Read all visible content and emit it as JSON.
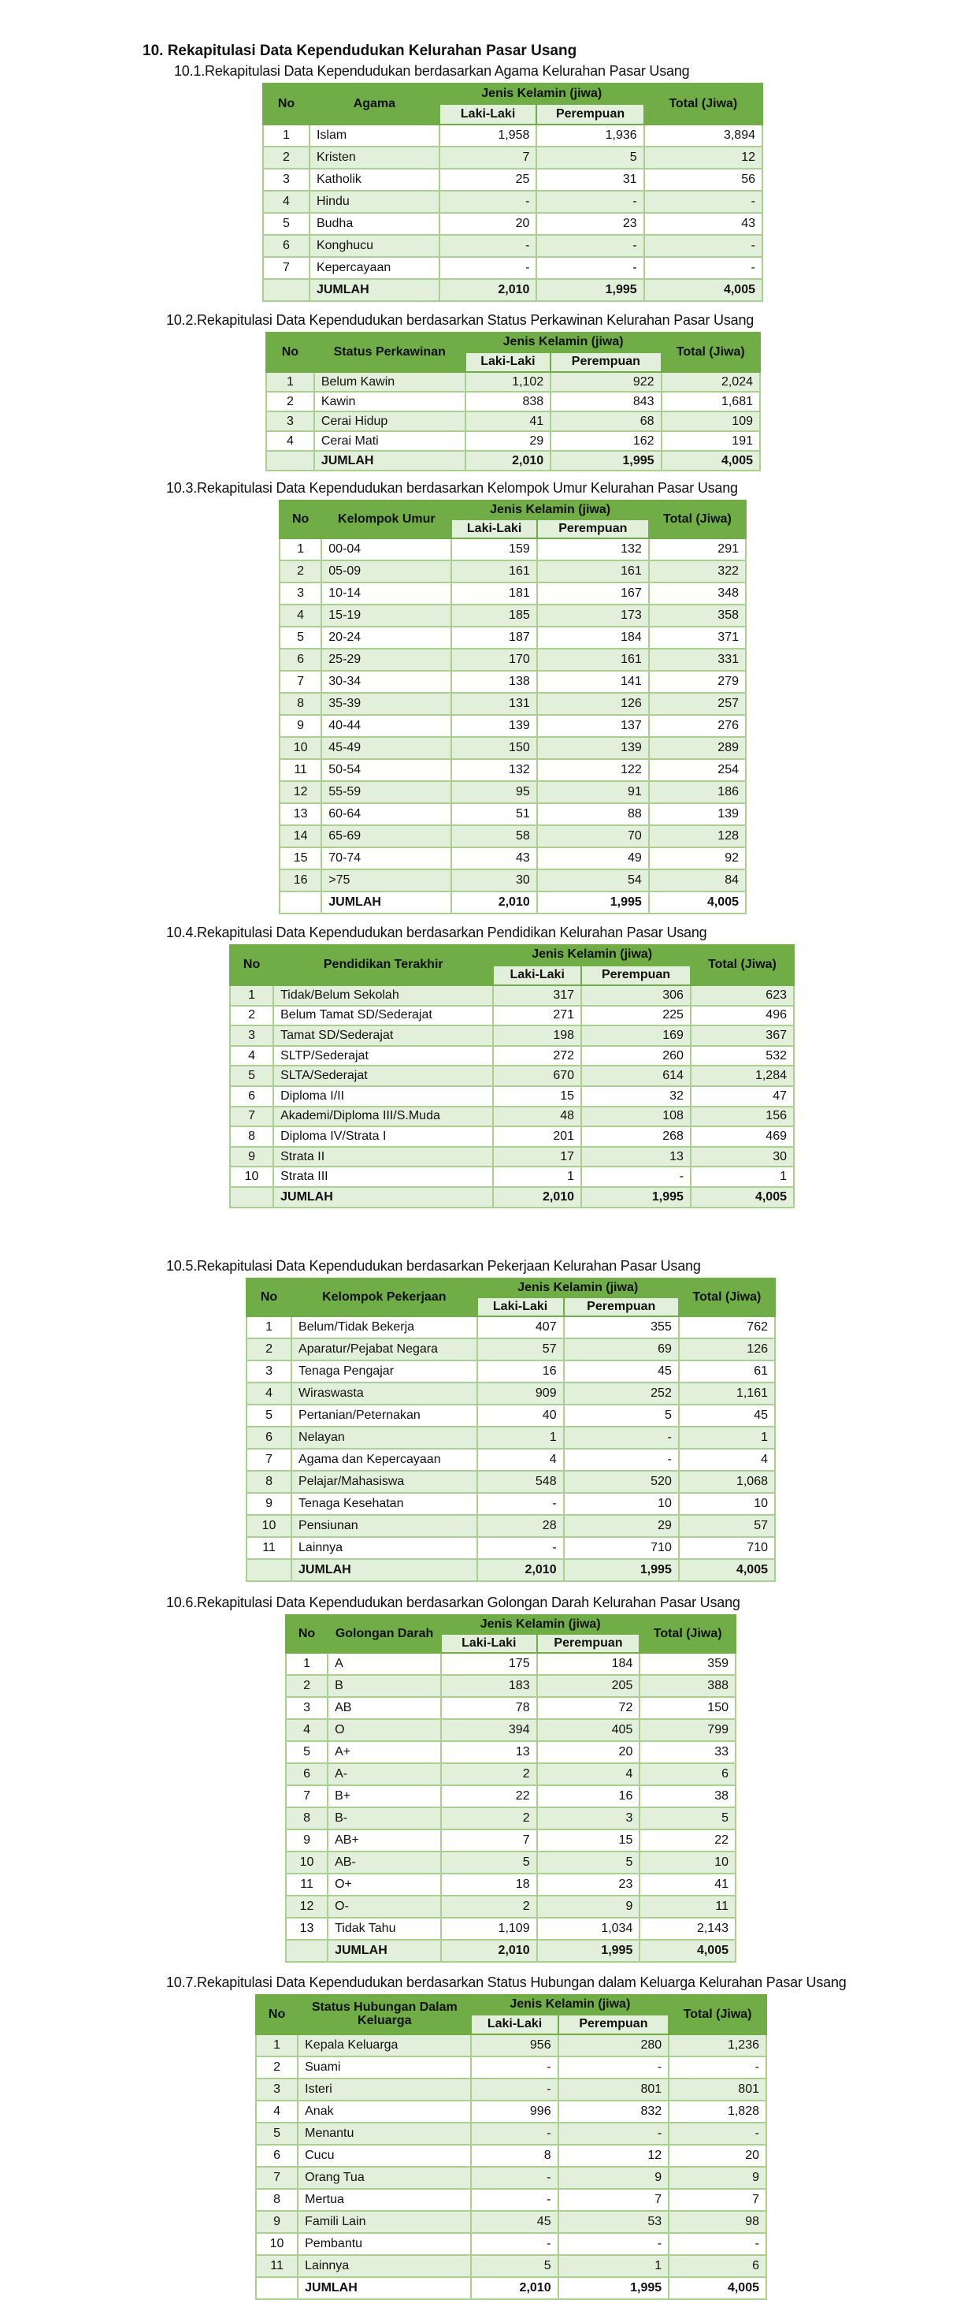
{
  "title": "10.  Rekapitulasi Data Kependudukan Kelurahan Pasar Usang",
  "header": {
    "no": "No",
    "gender_group": "Jenis Kelamin (jiwa)",
    "male": "Laki-Laki",
    "female": "Perempuan",
    "total": "Total (Jiwa)"
  },
  "colors": {
    "header_green": "#70ad47",
    "light_green": "#e2efda",
    "border_green": "#a9d08e"
  },
  "sections": [
    {
      "subtitle": "10.1.Rekapitulasi Data Kependudukan berdasarkan Agama Kelurahan Pasar Usang",
      "category_header": "Agama",
      "rows": [
        [
          "1",
          "Islam",
          "1,958",
          "1,936",
          "3,894"
        ],
        [
          "2",
          "Kristen",
          "7",
          "5",
          "12"
        ],
        [
          "3",
          "Katholik",
          "25",
          "31",
          "56"
        ],
        [
          "4",
          "Hindu",
          "-",
          "-",
          "-"
        ],
        [
          "5",
          "Budha",
          "20",
          "23",
          "43"
        ],
        [
          "6",
          "Konghucu",
          "-",
          "-",
          "-"
        ],
        [
          "7",
          "Kepercayaan",
          "-",
          "-",
          "-"
        ]
      ],
      "total": [
        "",
        "JUMLAH",
        "2,010",
        "1,995",
        "4,005"
      ]
    },
    {
      "subtitle": "10.2.Rekapitulasi Data Kependudukan berdasarkan Status Perkawinan Kelurahan Pasar Usang",
      "category_header": "Status Perkawinan",
      "rows": [
        [
          "1",
          "Belum Kawin",
          "1,102",
          "922",
          "2,024"
        ],
        [
          "2",
          "Kawin",
          "838",
          "843",
          "1,681"
        ],
        [
          "3",
          "Cerai Hidup",
          "41",
          "68",
          "109"
        ],
        [
          "4",
          "Cerai Mati",
          "29",
          "162",
          "191"
        ]
      ],
      "total": [
        "",
        "JUMLAH",
        "2,010",
        "1,995",
        "4,005"
      ]
    },
    {
      "subtitle": "10.3.Rekapitulasi Data Kependudukan berdasarkan Kelompok Umur Kelurahan Pasar Usang",
      "category_header": "Kelompok Umur",
      "rows": [
        [
          "1",
          "00-04",
          "159",
          "132",
          "291"
        ],
        [
          "2",
          "05-09",
          "161",
          "161",
          "322"
        ],
        [
          "3",
          "10-14",
          "181",
          "167",
          "348"
        ],
        [
          "4",
          "15-19",
          "185",
          "173",
          "358"
        ],
        [
          "5",
          "20-24",
          "187",
          "184",
          "371"
        ],
        [
          "6",
          "25-29",
          "170",
          "161",
          "331"
        ],
        [
          "7",
          "30-34",
          "138",
          "141",
          "279"
        ],
        [
          "8",
          "35-39",
          "131",
          "126",
          "257"
        ],
        [
          "9",
          "40-44",
          "139",
          "137",
          "276"
        ],
        [
          "10",
          "45-49",
          "150",
          "139",
          "289"
        ],
        [
          "11",
          "50-54",
          "132",
          "122",
          "254"
        ],
        [
          "12",
          "55-59",
          "95",
          "91",
          "186"
        ],
        [
          "13",
          "60-64",
          "51",
          "88",
          "139"
        ],
        [
          "14",
          "65-69",
          "58",
          "70",
          "128"
        ],
        [
          "15",
          "70-74",
          "43",
          "49",
          "92"
        ],
        [
          "16",
          ">75",
          "30",
          "54",
          "84"
        ]
      ],
      "total": [
        "",
        "JUMLAH",
        "2,010",
        "1,995",
        "4,005"
      ]
    },
    {
      "subtitle": "10.4.Rekapitulasi Data Kependudukan berdasarkan Pendidikan Kelurahan Pasar Usang",
      "category_header": "Pendidikan Terakhir",
      "rows": [
        [
          "1",
          "Tidak/Belum Sekolah",
          "317",
          "306",
          "623"
        ],
        [
          "2",
          "Belum Tamat SD/Sederajat",
          "271",
          "225",
          "496"
        ],
        [
          "3",
          "Tamat SD/Sederajat",
          "198",
          "169",
          "367"
        ],
        [
          "4",
          "SLTP/Sederajat",
          "272",
          "260",
          "532"
        ],
        [
          "5",
          "SLTA/Sederajat",
          "670",
          "614",
          "1,284"
        ],
        [
          "6",
          "Diploma I/II",
          "15",
          "32",
          "47"
        ],
        [
          "7",
          "Akademi/Diploma III/S.Muda",
          "48",
          "108",
          "156"
        ],
        [
          "8",
          "Diploma IV/Strata I",
          "201",
          "268",
          "469"
        ],
        [
          "9",
          "Strata II",
          "17",
          "13",
          "30"
        ],
        [
          "10",
          "Strata III",
          "1",
          "-",
          "1"
        ]
      ],
      "total": [
        "",
        "JUMLAH",
        "2,010",
        "1,995",
        "4,005"
      ]
    },
    {
      "subtitle": "10.5.Rekapitulasi Data Kependudukan berdasarkan Pekerjaan Kelurahan Pasar Usang",
      "category_header": "Kelompok Pekerjaan",
      "rows": [
        [
          "1",
          "Belum/Tidak Bekerja",
          "407",
          "355",
          "762"
        ],
        [
          "2",
          "Aparatur/Pejabat Negara",
          "57",
          "69",
          "126"
        ],
        [
          "3",
          "Tenaga Pengajar",
          "16",
          "45",
          "61"
        ],
        [
          "4",
          "Wiraswasta",
          "909",
          "252",
          "1,161"
        ],
        [
          "5",
          "Pertanian/Peternakan",
          "40",
          "5",
          "45"
        ],
        [
          "6",
          "Nelayan",
          "1",
          "-",
          "1"
        ],
        [
          "7",
          "Agama dan Kepercayaan",
          "4",
          "-",
          "4"
        ],
        [
          "8",
          "Pelajar/Mahasiswa",
          "548",
          "520",
          "1,068"
        ],
        [
          "9",
          "Tenaga Kesehatan",
          "-",
          "10",
          "10"
        ],
        [
          "10",
          "Pensiunan",
          "28",
          "29",
          "57"
        ],
        [
          "11",
          "Lainnya",
          "-",
          "710",
          "710"
        ]
      ],
      "total": [
        "",
        "JUMLAH",
        "2,010",
        "1,995",
        "4,005"
      ]
    },
    {
      "subtitle": "10.6.Rekapitulasi Data Kependudukan berdasarkan Golongan Darah Kelurahan Pasar Usang",
      "category_header": "Golongan Darah",
      "rows": [
        [
          "1",
          "A",
          "175",
          "184",
          "359"
        ],
        [
          "2",
          "B",
          "183",
          "205",
          "388"
        ],
        [
          "3",
          "AB",
          "78",
          "72",
          "150"
        ],
        [
          "4",
          "O",
          "394",
          "405",
          "799"
        ],
        [
          "5",
          "A+",
          "13",
          "20",
          "33"
        ],
        [
          "6",
          "A-",
          "2",
          "4",
          "6"
        ],
        [
          "7",
          "B+",
          "22",
          "16",
          "38"
        ],
        [
          "8",
          "B-",
          "2",
          "3",
          "5"
        ],
        [
          "9",
          "AB+",
          "7",
          "15",
          "22"
        ],
        [
          "10",
          "AB-",
          "5",
          "5",
          "10"
        ],
        [
          "11",
          "O+",
          "18",
          "23",
          "41"
        ],
        [
          "12",
          "O-",
          "2",
          "9",
          "11"
        ],
        [
          "13",
          "Tidak Tahu",
          "1,109",
          "1,034",
          "2,143"
        ]
      ],
      "total": [
        "",
        "JUMLAH",
        "2,010",
        "1,995",
        "4,005"
      ]
    },
    {
      "subtitle": "10.7.Rekapitulasi Data Kependudukan berdasarkan Status Hubungan dalam Keluarga Kelurahan Pasar Usang",
      "category_header": "Status Hubungan Dalam Keluarga",
      "rows": [
        [
          "1",
          "Kepala Keluarga",
          "956",
          "280",
          "1,236"
        ],
        [
          "2",
          "Suami",
          "-",
          "-",
          "-"
        ],
        [
          "3",
          "Isteri",
          "-",
          "801",
          "801"
        ],
        [
          "4",
          "Anak",
          "996",
          "832",
          "1,828"
        ],
        [
          "5",
          "Menantu",
          "-",
          "-",
          "-"
        ],
        [
          "6",
          "Cucu",
          "8",
          "12",
          "20"
        ],
        [
          "7",
          "Orang Tua",
          "-",
          "9",
          "9"
        ],
        [
          "8",
          "Mertua",
          "-",
          "7",
          "7"
        ],
        [
          "9",
          "Famili Lain",
          "45",
          "53",
          "98"
        ],
        [
          "10",
          "Pembantu",
          "-",
          "-",
          "-"
        ],
        [
          "11",
          "Lainnya",
          "5",
          "1",
          "6"
        ]
      ],
      "total": [
        "",
        "JUMLAH",
        "2,010",
        "1,995",
        "4,005"
      ]
    }
  ]
}
